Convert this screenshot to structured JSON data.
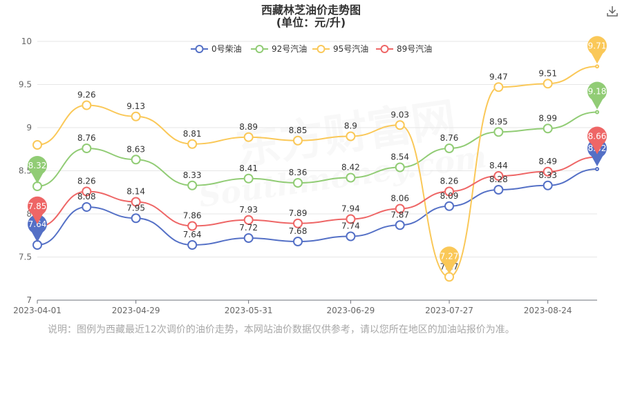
{
  "chart_data": {
    "type": "line",
    "title": "西藏林芝油价走势图",
    "subtitle": "(单位：元/升)",
    "x_ticks": [
      "2023-04-01",
      "2023-04-29",
      "2023-05-31",
      "2023-06-29",
      "2023-07-27",
      "2023-08-24"
    ],
    "x_dates": [
      "2023-04-01",
      "2023-04-15",
      "2023-04-29",
      "2023-05-15",
      "2023-05-31",
      "2023-06-14",
      "2023-06-29",
      "2023-07-13",
      "2023-07-27",
      "2023-08-10",
      "2023-08-24",
      "2023-09-07"
    ],
    "ylim": [
      7,
      10
    ],
    "y_ticks": [
      "7",
      "7.5",
      "8",
      "8.5",
      "9",
      "9.5",
      "10"
    ],
    "grid": true,
    "legend_position": "top",
    "series": [
      {
        "name": "0号柴油",
        "color": "#5470c6",
        "values": [
          7.64,
          8.08,
          7.95,
          7.64,
          7.72,
          7.68,
          7.74,
          7.87,
          8.09,
          8.28,
          8.33,
          8.52
        ],
        "labels": [
          "7.64",
          "8.08",
          "7.95",
          "7.64",
          "7.72",
          "7.68",
          "7.74",
          "7.87",
          "8.09",
          "8.28",
          "8.33",
          "8.52"
        ],
        "max_label": "8.52",
        "min_label": "7.64"
      },
      {
        "name": "92号汽油",
        "color": "#91cc75",
        "values": [
          8.32,
          8.76,
          8.63,
          8.33,
          8.41,
          8.36,
          8.42,
          8.54,
          8.76,
          8.95,
          8.99,
          9.18
        ],
        "labels": [
          "8.32",
          "8.76",
          "8.63",
          "8.33",
          "8.41",
          "8.36",
          "8.42",
          "8.54",
          "8.76",
          "8.95",
          "8.99",
          "9.18"
        ],
        "max_label": "9.18",
        "min_label": "8.32"
      },
      {
        "name": "95号汽油",
        "color": "#fac858",
        "values": [
          8.8,
          9.26,
          9.13,
          8.81,
          8.89,
          8.85,
          8.9,
          9.03,
          7.27,
          9.47,
          9.51,
          9.71
        ],
        "labels": [
          "8.8",
          "9.26",
          "9.13",
          "8.81",
          "8.89",
          "8.85",
          "8.9",
          "9.03",
          "7.27",
          "9.47",
          "9.51",
          "9.71"
        ],
        "max_label": "9.71",
        "min_label": "7.27"
      },
      {
        "name": "89号汽油",
        "color": "#ee6666",
        "values": [
          7.85,
          8.26,
          8.14,
          7.86,
          7.93,
          7.89,
          7.94,
          8.06,
          8.26,
          8.44,
          8.49,
          8.66
        ],
        "labels": [
          "7.85",
          "8.26",
          "8.14",
          "7.86",
          "7.93",
          "7.89",
          "7.94",
          "8.06",
          "8.26",
          "8.44",
          "8.49",
          "8.66"
        ],
        "max_label": "8.66",
        "min_label": "7.85"
      }
    ]
  },
  "watermark": {
    "cn": "东方财富网",
    "en": "Southmoney.com"
  },
  "note": "说明：图例为西藏最近12次调价的油价走势，本网站油价数据仅供参考，请以您所在地区的加油站报价为准。",
  "download_icon": "download-icon"
}
